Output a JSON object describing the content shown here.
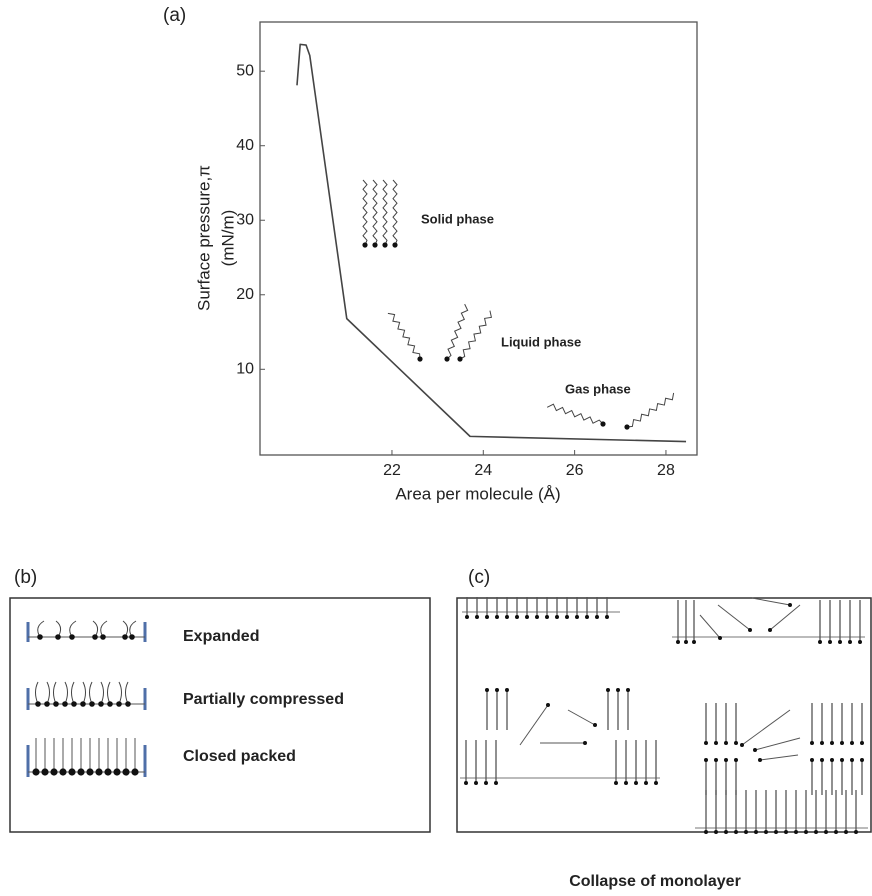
{
  "chart_data": {
    "type": "line",
    "panel_label": "(a)",
    "y_label": [
      "Surface pressure,π",
      "(mN/m)"
    ],
    "x_label": "Area per molecule (Å)",
    "x": [
      19.92,
      19.99,
      20.12,
      20.2,
      21.01,
      23.71,
      28.44
    ],
    "series": [
      {
        "color": "#444444",
        "values": [
          48.1,
          53.6,
          53.5,
          52.1,
          16.8,
          1.0,
          0.3
        ]
      }
    ],
    "xlim": [
      19.11,
      28.68
    ],
    "ylim": [
      -1.5,
      56.6
    ],
    "xticks": [
      22,
      24,
      26,
      28
    ],
    "yticks": [
      10,
      20,
      30,
      40,
      50
    ],
    "annotations": [
      "Solid phase",
      "Liquid phase",
      "Gas phase"
    ]
  },
  "panel_b": {
    "label": "(b)",
    "states": [
      "Expanded",
      "Partially compressed",
      "Closed packed"
    ]
  },
  "panel_c": {
    "label": "(c)",
    "caption": "Collapse of monolayer"
  }
}
